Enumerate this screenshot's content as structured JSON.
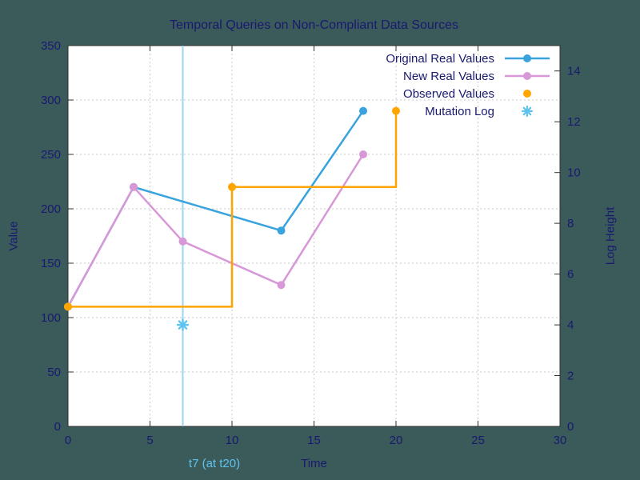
{
  "window": {
    "background": "#3b5b5b"
  },
  "chart_data": {
    "type": "line",
    "title": "Temporal Queries on Non-Compliant Data Sources",
    "xlabel": "Time",
    "ylabel": "Value",
    "y2label": "Log Height",
    "xlim": [
      0,
      30
    ],
    "ylim": [
      0,
      350
    ],
    "y2lim": [
      0,
      15
    ],
    "xticks": [
      0,
      5,
      10,
      15,
      20,
      25,
      30
    ],
    "yticks": [
      0,
      50,
      100,
      150,
      200,
      250,
      300,
      350
    ],
    "y2ticks": [
      0,
      2,
      4,
      6,
      8,
      10,
      12,
      14
    ],
    "grid": true,
    "legend_position": "top-right-inside",
    "colors": {
      "plot_bg": "#ffffff",
      "text": "#191970",
      "grid": "#c9c9c9",
      "border": "#303030"
    },
    "vline": {
      "x": 7,
      "color": "#9bd5f3",
      "label": "t7 (at t20)",
      "label_color": "#5fc3ee"
    },
    "series": [
      {
        "name": "Original Real Values",
        "style": "linespoints",
        "color": "#38a3dc",
        "axis": "y1",
        "points": [
          [
            0,
            110
          ],
          [
            4,
            220
          ],
          [
            13,
            180
          ],
          [
            18,
            290
          ]
        ]
      },
      {
        "name": "New Real Values",
        "style": "linespoints",
        "color": "#d898d8",
        "axis": "y1",
        "points": [
          [
            0,
            110
          ],
          [
            4,
            220
          ],
          [
            7,
            170
          ],
          [
            13,
            130
          ],
          [
            18,
            250
          ]
        ]
      },
      {
        "name": "Observed Values",
        "style": "steps-points",
        "color": "#ffa500",
        "axis": "y1",
        "points": [
          [
            0,
            110
          ],
          [
            10,
            220
          ],
          [
            20,
            290
          ]
        ]
      },
      {
        "name": "Mutation Log",
        "style": "asterisk-point",
        "color": "#5fc3ee",
        "axis": "y2",
        "points": [
          [
            7,
            4
          ]
        ]
      }
    ]
  }
}
